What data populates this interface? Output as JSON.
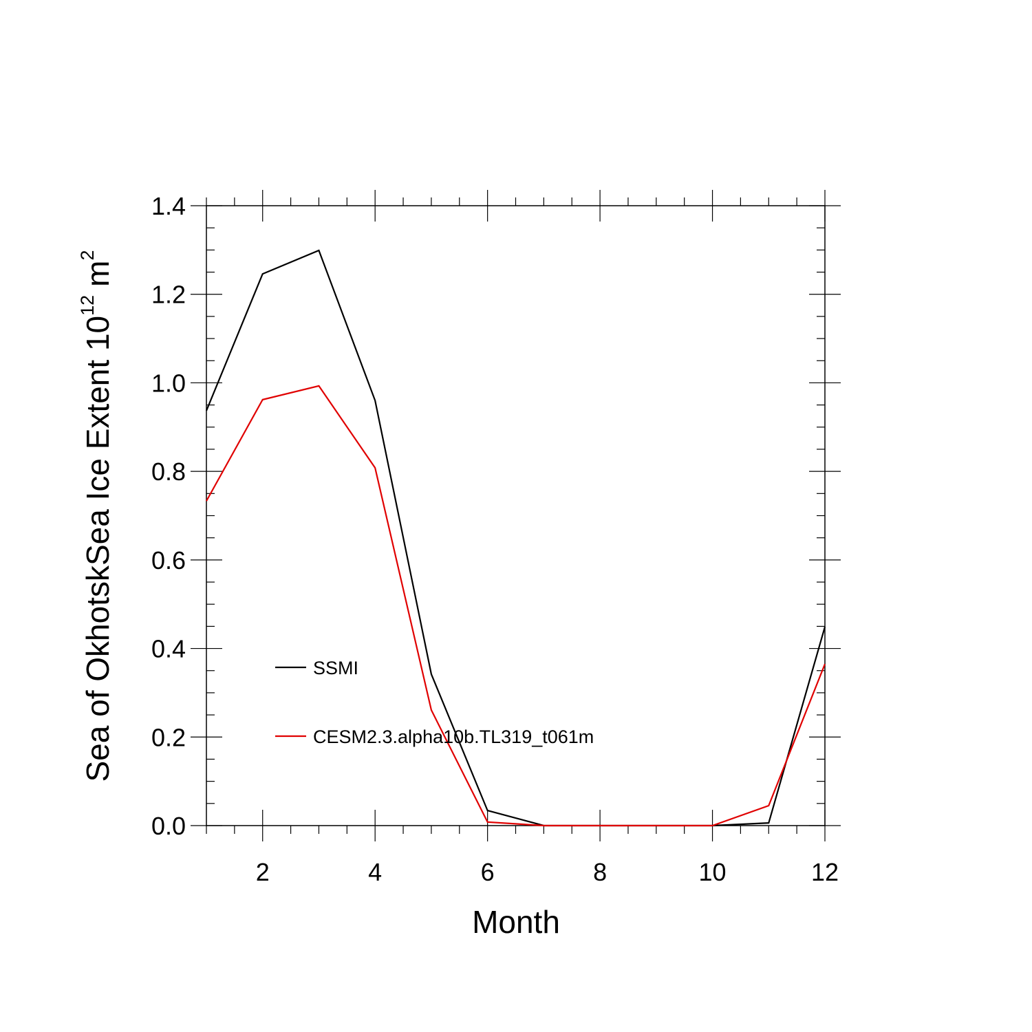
{
  "chart_data": {
    "type": "line",
    "xlabel": "Month",
    "ylabel": {
      "text": "Sea of OkhotskSea Ice Extent 10",
      "exponent": "12",
      "unit": "m",
      "unit_exponent": "2"
    },
    "x": [
      1,
      2,
      3,
      4,
      5,
      6,
      7,
      8,
      9,
      10,
      11,
      12
    ],
    "series": [
      {
        "name": "SSMI",
        "color": "#000000",
        "values": [
          0.937,
          1.246,
          1.299,
          0.96,
          0.342,
          0.034,
          0,
          0,
          0,
          0,
          0.006,
          0.449
        ]
      },
      {
        "name": "CESM2.3.alpha10b.TL319_t061m",
        "color": "#e00000",
        "values": [
          0.733,
          0.962,
          0.993,
          0.808,
          0.261,
          0.008,
          0,
          0,
          0,
          0,
          0.045,
          0.365
        ]
      }
    ],
    "xlim": [
      1,
      12
    ],
    "xticks": [
      2,
      4,
      6,
      8,
      10,
      12
    ],
    "xminorticks": [
      1,
      1.5,
      2.5,
      3,
      3.5,
      4.5,
      5,
      5.5,
      6.5,
      7,
      7.5,
      8.5,
      9,
      9.5,
      10.5,
      11,
      11.5
    ],
    "ylim": [
      0,
      1.4
    ],
    "yticks": [
      {
        "value": 0,
        "label": "0.0"
      },
      {
        "value": 0.2,
        "label": "0.2"
      },
      {
        "value": 0.4,
        "label": "0.4"
      },
      {
        "value": 0.6,
        "label": "0.6"
      },
      {
        "value": 0.8,
        "label": "0.8"
      },
      {
        "value": 1,
        "label": "1.0"
      },
      {
        "value": 1.2,
        "label": "1.2"
      },
      {
        "value": 1.4,
        "label": "1.4"
      }
    ],
    "yminorticks": [
      0.05,
      0.1,
      0.15,
      0.25,
      0.3,
      0.35,
      0.45,
      0.5,
      0.55,
      0.65,
      0.7,
      0.75,
      0.85,
      0.9,
      0.95,
      1.05,
      1.1,
      1.15,
      1.25,
      1.3,
      1.35
    ],
    "grid": false
  }
}
